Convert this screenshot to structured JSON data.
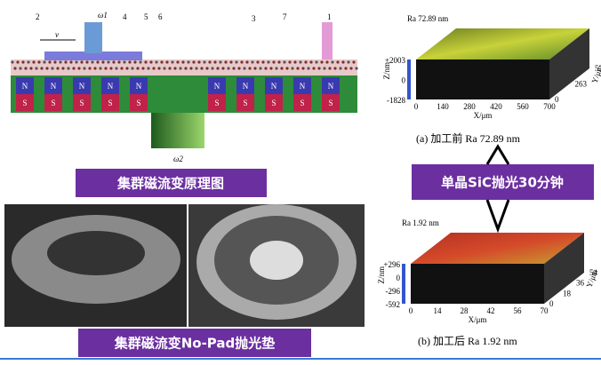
{
  "principle": {
    "labels": [
      "1",
      "2",
      "3",
      "4",
      "5",
      "6",
      "7"
    ],
    "velocity": "v",
    "omega1": "ω1",
    "omega2": "ω2",
    "north": "N",
    "south": "S",
    "caption": "集群磁流变原理图"
  },
  "pad": {
    "caption": "集群磁流变No-Pad抛光垫"
  },
  "process": {
    "caption": "单晶SiC抛光30分钟"
  },
  "before": {
    "ra": "Ra 72.89 nm",
    "z_label": "Z/nm",
    "z_ticks": [
      "+2003",
      "0",
      "-1828"
    ],
    "x_label": "X/μm",
    "x_ticks": [
      "0",
      "140",
      "280",
      "420",
      "560",
      "700"
    ],
    "y_label": "Y/μm",
    "y_ticks": [
      "0",
      "263",
      "526"
    ],
    "caption": "(a)  加工前  Ra 72.89 nm"
  },
  "after": {
    "ra": "Ra 1.92 nm",
    "z_label": "Z/nm",
    "z_ticks": [
      "+296",
      "0",
      "-296",
      "-592"
    ],
    "x_label": "X/μm",
    "x_ticks": [
      "0",
      "14",
      "28",
      "42",
      "56",
      "70"
    ],
    "y_label": "Y/μm",
    "y_ticks": [
      "0",
      "18",
      "36",
      "54"
    ],
    "caption": "(b)  加工后  Ra 1.92 nm"
  }
}
